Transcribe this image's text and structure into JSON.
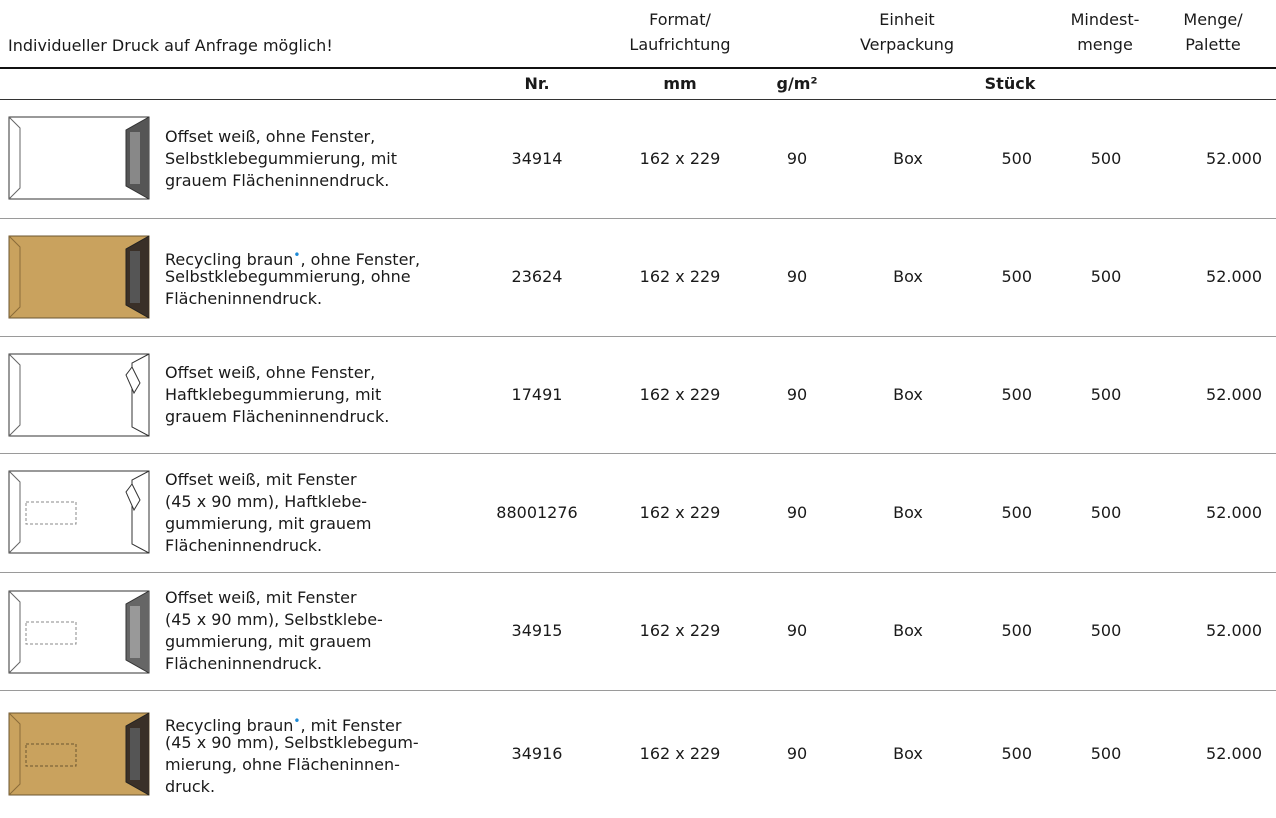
{
  "header": {
    "note": "Individueller Druck auf Anfrage möglich!",
    "columns": [
      [
        "Format/",
        "Laufrichtung"
      ],
      [
        "Einheit",
        "Verpackung"
      ],
      [
        "Mindest-",
        "menge"
      ],
      [
        "Menge/",
        "Palette"
      ]
    ],
    "units": [
      "Nr.",
      "mm",
      "g/m²",
      "Stück"
    ]
  },
  "table": {
    "rows": [
      {
        "description": [
          "Offset weiß, ohne Fenster,",
          "Selbstklebegummierung, mit",
          "grauem Flächeninnendruck."
        ],
        "nr": "34914",
        "format": "162 x 229",
        "weight": "90",
        "unit": "Box",
        "pack": "500",
        "minimum": "500",
        "pallet": "52.000"
      },
      {
        "description": [
          [
            "Recycling braun",
            "•",
            ", ohne Fenster,"
          ],
          "Selbstklebegummierung, ohne",
          "Flächeninnendruck."
        ],
        "nr": "23624",
        "format": "162 x 229",
        "weight": "90",
        "unit": "Box",
        "pack": "500",
        "minimum": "500",
        "pallet": "52.000"
      },
      {
        "description": [
          "Offset weiß, ohne Fenster,",
          "Haftklebegummierung, mit",
          "grauem Flächeninnendruck."
        ],
        "nr": "17491",
        "format": "162 x 229",
        "weight": "90",
        "unit": "Box",
        "pack": "500",
        "minimum": "500",
        "pallet": "52.000"
      },
      {
        "description": [
          "Offset weiß, mit Fenster",
          "(45 x 90 mm), Haftklebe-",
          "gummierung, mit grauem",
          "Flächeninnendruck."
        ],
        "nr": "88001276",
        "format": "162 x 229",
        "weight": "90",
        "unit": "Box",
        "pack": "500",
        "minimum": "500",
        "pallet": "52.000"
      },
      {
        "description": [
          "Offset weiß, mit Fenster",
          "(45 x 90 mm), Selbstklebe-",
          "gummierung, mit grauem",
          "Flächeninnendruck."
        ],
        "nr": "34915",
        "format": "162 x 229",
        "weight": "90",
        "unit": "Box",
        "pack": "500",
        "minimum": "500",
        "pallet": "52.000"
      },
      {
        "description": [
          [
            "Recycling braun",
            "•",
            ", mit Fenster"
          ],
          "(45 x 90 mm), Selbstklebegum-",
          "mierung, ohne Flächeninnen-",
          "druck."
        ],
        "nr": "34916",
        "format": "162 x 229",
        "weight": "90",
        "unit": "Box",
        "pack": "500",
        "minimum": "500",
        "pallet": "52.000"
      }
    ]
  }
}
